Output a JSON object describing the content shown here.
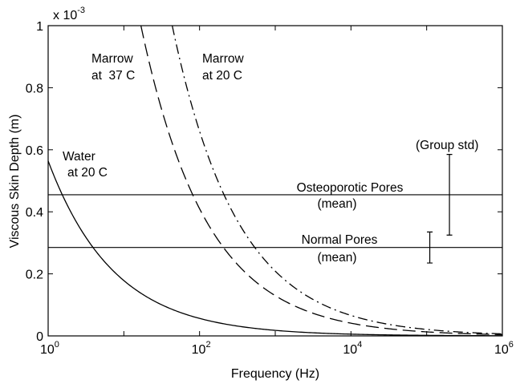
{
  "chart_data": {
    "type": "line",
    "xlabel": "Frequency (Hz)",
    "ylabel": "Viscous Skin Depth (m)",
    "x_scale": "log",
    "xlim": [
      1,
      1000000
    ],
    "ylim": [
      0,
      0.001
    ],
    "y_multiplier": "x 10",
    "y_multiplier_exponent": "-3",
    "x_ticks": [
      {
        "base": "10",
        "exp": "0",
        "value": 1
      },
      {
        "base": "10",
        "exp": "2",
        "value": 100
      },
      {
        "base": "10",
        "exp": "4",
        "value": 10000
      },
      {
        "base": "10",
        "exp": "6",
        "value": 1000000
      }
    ],
    "y_ticks": [
      {
        "label": "0",
        "value": 0
      },
      {
        "label": "0.2",
        "value": 0.0002
      },
      {
        "label": "0.4",
        "value": 0.0004
      },
      {
        "label": "0.6",
        "value": 0.0006
      },
      {
        "label": "0.8",
        "value": 0.0008
      },
      {
        "label": "1",
        "value": 0.001
      }
    ],
    "grid": false,
    "series": [
      {
        "name": "Water at 20 C",
        "style": "solid",
        "coef": 0.000564,
        "x": [
          1,
          10,
          100,
          1000,
          10000,
          100000,
          1000000
        ],
        "y": [
          0.000564,
          0.000178,
          5.64e-05,
          1.78e-05,
          5.6e-06,
          1.8e-06,
          6e-07
        ]
      },
      {
        "name": "Marrow at 37 C",
        "style": "dashed",
        "coef": 0.0041,
        "x": [
          16.8,
          100,
          1000,
          10000,
          100000,
          1000000
        ],
        "y": [
          0.001,
          0.00041,
          0.00013,
          4.1e-05,
          1.3e-05,
          4.1e-06
        ]
      },
      {
        "name": "Marrow at 20 C",
        "style": "dashdot",
        "coef": 0.0066,
        "x": [
          43.6,
          100,
          1000,
          10000,
          100000,
          1000000
        ],
        "y": [
          0.001,
          0.00066,
          0.00021,
          6.6e-05,
          2.1e-05,
          6.6e-06
        ]
      }
    ],
    "hlines": [
      {
        "name": "Osteoporotic Pores (mean)",
        "y": 0.000455
      },
      {
        "name": "Normal Pores (mean)",
        "y": 0.000285
      }
    ],
    "error_bars": [
      {
        "x": 200000,
        "y_low": 0.000325,
        "y_high": 0.000585
      },
      {
        "x": 110000,
        "y_low": 0.000235,
        "y_high": 0.000335
      }
    ],
    "annotations": {
      "marrow37": [
        "Marrow",
        "at  37 C"
      ],
      "marrow20": [
        "Marrow",
        "at 20 C"
      ],
      "water": [
        "Water",
        "at 20 C"
      ],
      "osteo": [
        "Osteoporotic Pores",
        "(mean)"
      ],
      "normal": [
        "Normal Pores",
        "(mean)"
      ],
      "group_std": "(Group std)"
    }
  }
}
